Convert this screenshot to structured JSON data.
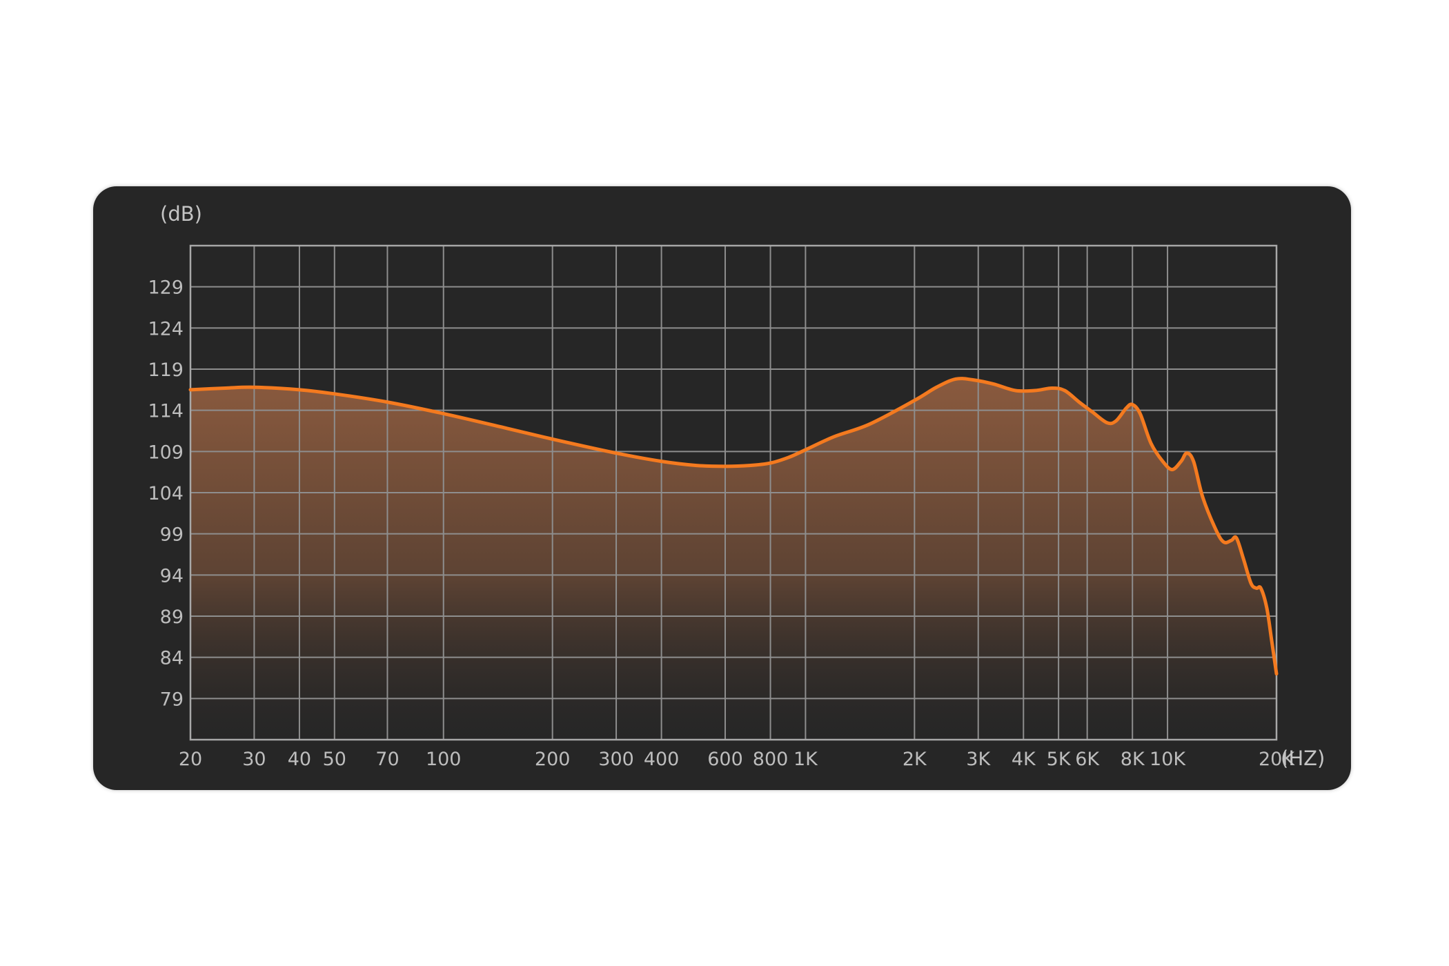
{
  "chart_data": {
    "type": "area",
    "ylabel": "(dB)",
    "xunit": "(HZ)",
    "xscale": "log",
    "xlim": [
      20,
      20000
    ],
    "ylim": [
      74,
      134
    ],
    "grid": true,
    "x_ticks": [
      {
        "value": 20,
        "label": "20"
      },
      {
        "value": 30,
        "label": "30"
      },
      {
        "value": 40,
        "label": "40"
      },
      {
        "value": 50,
        "label": "50"
      },
      {
        "value": 70,
        "label": "70"
      },
      {
        "value": 100,
        "label": "100"
      },
      {
        "value": 200,
        "label": "200"
      },
      {
        "value": 300,
        "label": "300"
      },
      {
        "value": 400,
        "label": "400"
      },
      {
        "value": 600,
        "label": "600"
      },
      {
        "value": 800,
        "label": "800"
      },
      {
        "value": 1000,
        "label": "1K"
      },
      {
        "value": 2000,
        "label": "2K"
      },
      {
        "value": 3000,
        "label": "3K"
      },
      {
        "value": 4000,
        "label": "4K"
      },
      {
        "value": 5000,
        "label": "5K"
      },
      {
        "value": 6000,
        "label": "6K"
      },
      {
        "value": 8000,
        "label": "8K"
      },
      {
        "value": 10000,
        "label": "10K"
      },
      {
        "value": 20000,
        "label": "20K"
      }
    ],
    "y_ticks": [
      129,
      124,
      119,
      114,
      109,
      104,
      99,
      94,
      89,
      84,
      79
    ],
    "series": [
      {
        "color": "#f47a1f",
        "fill_top": "#8a5a3e",
        "fill_bottom": "#2a2a2a",
        "points": [
          [
            20,
            116.5
          ],
          [
            25,
            116.7
          ],
          [
            30,
            116.8
          ],
          [
            40,
            116.5
          ],
          [
            50,
            116.0
          ],
          [
            70,
            115.0
          ],
          [
            100,
            113.6
          ],
          [
            150,
            111.8
          ],
          [
            200,
            110.5
          ],
          [
            300,
            108.8
          ],
          [
            400,
            107.8
          ],
          [
            500,
            107.3
          ],
          [
            600,
            107.2
          ],
          [
            700,
            107.3
          ],
          [
            800,
            107.6
          ],
          [
            900,
            108.3
          ],
          [
            1000,
            109.2
          ],
          [
            1200,
            110.8
          ],
          [
            1500,
            112.3
          ],
          [
            2000,
            115.2
          ],
          [
            2300,
            116.8
          ],
          [
            2600,
            117.8
          ],
          [
            2900,
            117.7
          ],
          [
            3300,
            117.2
          ],
          [
            3800,
            116.4
          ],
          [
            4300,
            116.4
          ],
          [
            4800,
            116.7
          ],
          [
            5200,
            116.4
          ],
          [
            5700,
            115.0
          ],
          [
            6200,
            113.8
          ],
          [
            6800,
            112.5
          ],
          [
            7200,
            112.7
          ],
          [
            7700,
            114.3
          ],
          [
            8000,
            114.7
          ],
          [
            8400,
            113.6
          ],
          [
            9000,
            110.0
          ],
          [
            9700,
            107.8
          ],
          [
            10300,
            106.8
          ],
          [
            10900,
            107.8
          ],
          [
            11300,
            108.8
          ],
          [
            11800,
            107.8
          ],
          [
            12500,
            103.5
          ],
          [
            13600,
            99.5
          ],
          [
            14300,
            98.0
          ],
          [
            15000,
            98.2
          ],
          [
            15500,
            98.5
          ],
          [
            16200,
            96.0
          ],
          [
            17000,
            93.0
          ],
          [
            17600,
            92.4
          ],
          [
            18100,
            92.4
          ],
          [
            18800,
            90.0
          ],
          [
            19400,
            86.0
          ],
          [
            20000,
            82.0
          ]
        ]
      }
    ]
  }
}
